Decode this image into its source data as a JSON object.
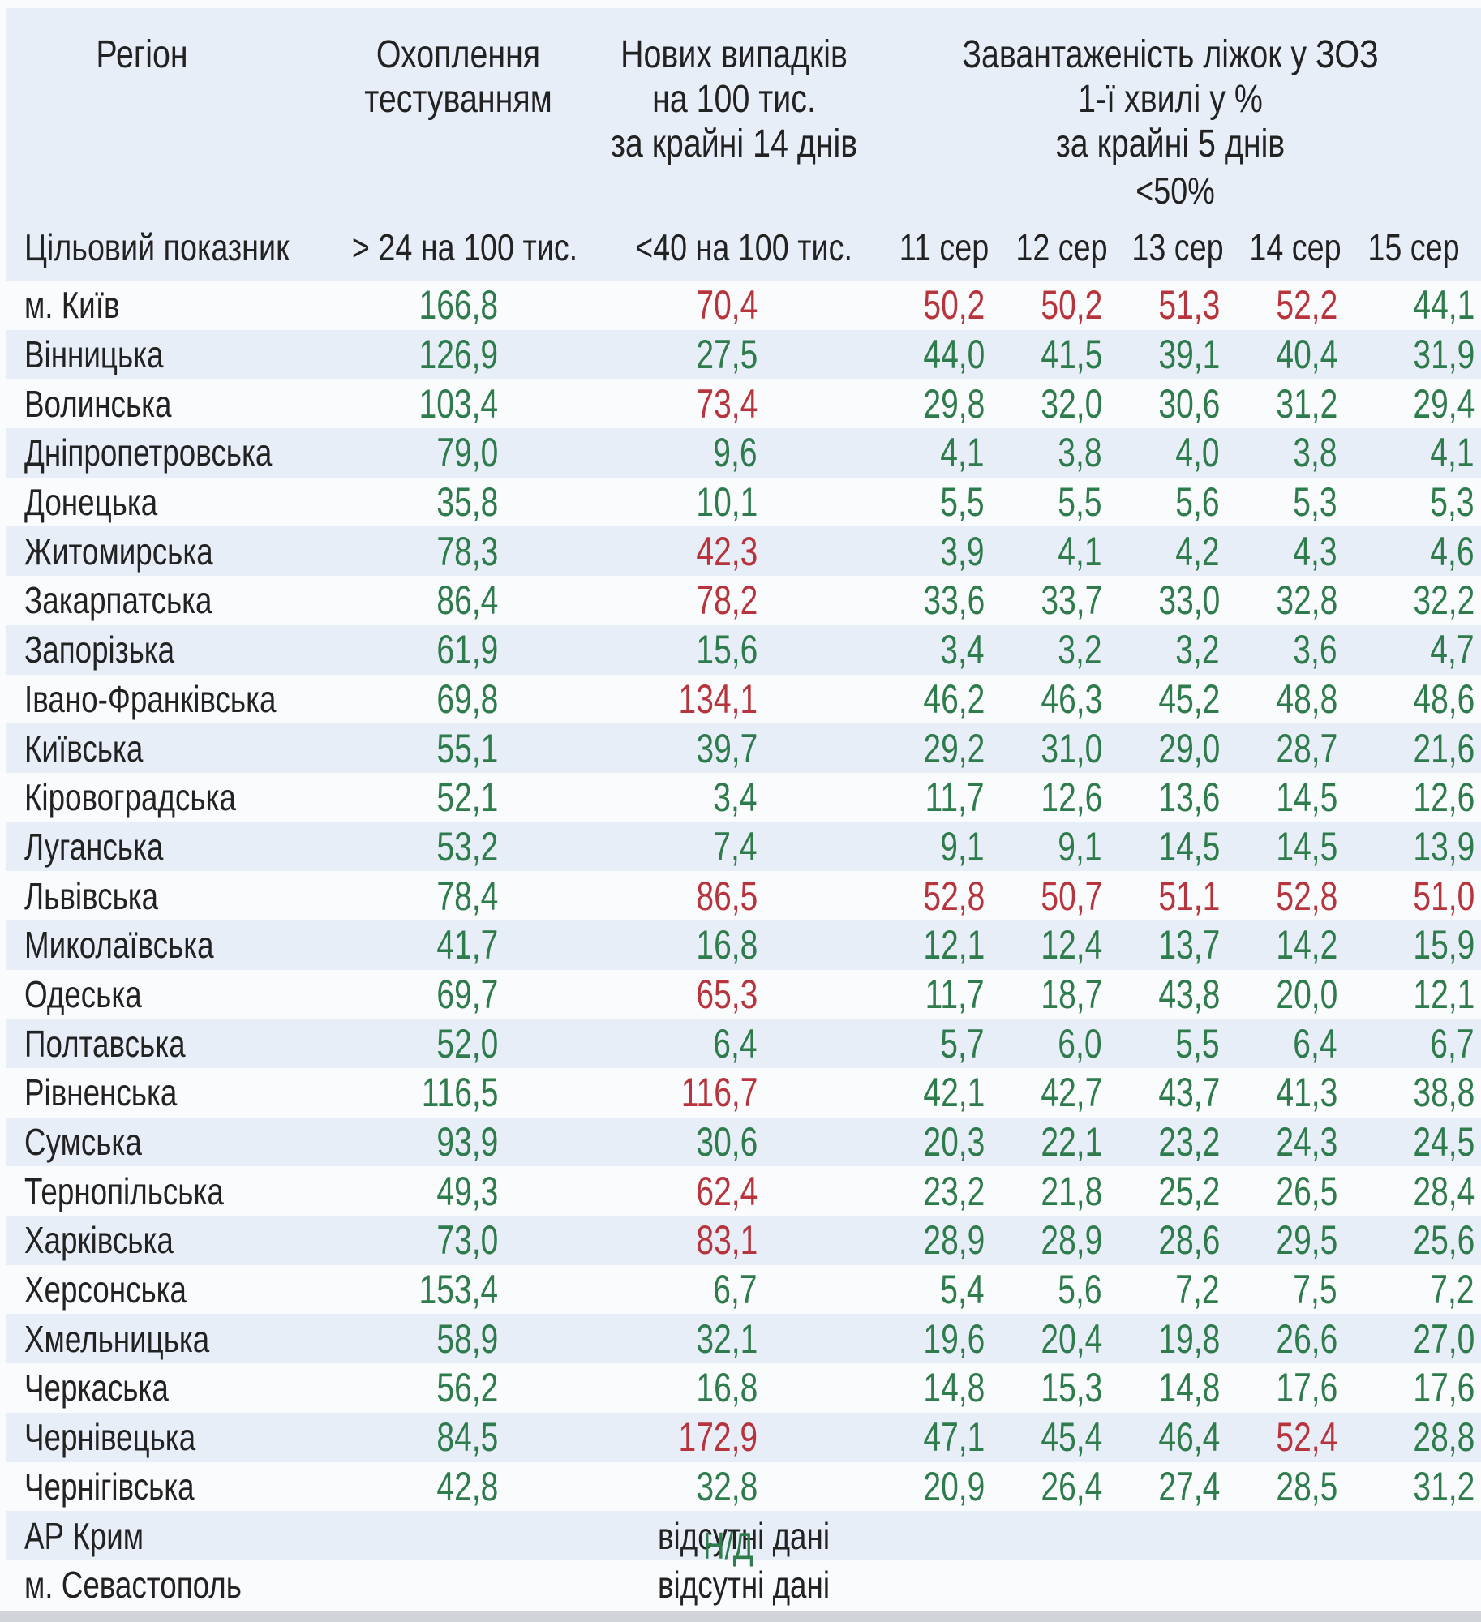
{
  "chart_data": {
    "type": "table",
    "header": {
      "region": "Регіон",
      "testing_lines": [
        "Охоплення",
        "тестуванням"
      ],
      "cases_lines": [
        "Нових випадків",
        "на 100 тис.",
        "за крайні 14 днів"
      ],
      "beds_lines": [
        "Завантаженість ліжок у ЗОЗ",
        "1-ї хвилі у %",
        "за крайні 5 днів"
      ],
      "beds_threshold": "<50%"
    },
    "target_row": {
      "label": "Цільовий показник",
      "testing_target": "> 24 на 100 тис.",
      "cases_target": "<40 на 100 тис.",
      "dates": [
        "11 сер",
        "12 сер",
        "13 сер",
        "14 сер",
        "15 сер"
      ]
    },
    "colors": {
      "good": "#2e7b4c",
      "bad": "#b7343c",
      "stripe": "#e8eef8",
      "text": "#222222",
      "page": "#fafbfd",
      "bottom_strip": "#d1d4d8"
    },
    "rows": [
      {
        "region": "м. Київ",
        "testing": {
          "v": "166,8",
          "ok": true
        },
        "cases": {
          "v": "70,4",
          "ok": false
        },
        "beds": [
          {
            "v": "50,2",
            "ok": false
          },
          {
            "v": "50,2",
            "ok": false
          },
          {
            "v": "51,3",
            "ok": false
          },
          {
            "v": "52,2",
            "ok": false
          },
          {
            "v": "44,1",
            "ok": true
          }
        ]
      },
      {
        "region": "Вінницька",
        "testing": {
          "v": "126,9",
          "ok": true
        },
        "cases": {
          "v": "27,5",
          "ok": true
        },
        "beds": [
          {
            "v": "44,0",
            "ok": true
          },
          {
            "v": "41,5",
            "ok": true
          },
          {
            "v": "39,1",
            "ok": true
          },
          {
            "v": "40,4",
            "ok": true
          },
          {
            "v": "31,9",
            "ok": true
          }
        ]
      },
      {
        "region": "Волинська",
        "testing": {
          "v": "103,4",
          "ok": true
        },
        "cases": {
          "v": "73,4",
          "ok": false
        },
        "beds": [
          {
            "v": "29,8",
            "ok": true
          },
          {
            "v": "32,0",
            "ok": true
          },
          {
            "v": "30,6",
            "ok": true
          },
          {
            "v": "31,2",
            "ok": true
          },
          {
            "v": "29,4",
            "ok": true
          }
        ]
      },
      {
        "region": "Дніпропетровська",
        "testing": {
          "v": "79,0",
          "ok": true
        },
        "cases": {
          "v": "9,6",
          "ok": true
        },
        "beds": [
          {
            "v": "4,1",
            "ok": true
          },
          {
            "v": "3,8",
            "ok": true
          },
          {
            "v": "4,0",
            "ok": true
          },
          {
            "v": "3,8",
            "ok": true
          },
          {
            "v": "4,1",
            "ok": true
          }
        ]
      },
      {
        "region": "Донецька",
        "testing": {
          "v": "35,8",
          "ok": true
        },
        "cases": {
          "v": "10,1",
          "ok": true
        },
        "beds": [
          {
            "v": "5,5",
            "ok": true
          },
          {
            "v": "5,5",
            "ok": true
          },
          {
            "v": "5,6",
            "ok": true
          },
          {
            "v": "5,3",
            "ok": true
          },
          {
            "v": "5,3",
            "ok": true
          }
        ]
      },
      {
        "region": "Житомирська",
        "testing": {
          "v": "78,3",
          "ok": true
        },
        "cases": {
          "v": "42,3",
          "ok": false
        },
        "beds": [
          {
            "v": "3,9",
            "ok": true
          },
          {
            "v": "4,1",
            "ok": true
          },
          {
            "v": "4,2",
            "ok": true
          },
          {
            "v": "4,3",
            "ok": true
          },
          {
            "v": "4,6",
            "ok": true
          }
        ]
      },
      {
        "region": "Закарпатська",
        "testing": {
          "v": "86,4",
          "ok": true
        },
        "cases": {
          "v": "78,2",
          "ok": false
        },
        "beds": [
          {
            "v": "33,6",
            "ok": true
          },
          {
            "v": "33,7",
            "ok": true
          },
          {
            "v": "33,0",
            "ok": true
          },
          {
            "v": "32,8",
            "ok": true
          },
          {
            "v": "32,2",
            "ok": true
          }
        ]
      },
      {
        "region": "Запорізька",
        "testing": {
          "v": "61,9",
          "ok": true
        },
        "cases": {
          "v": "15,6",
          "ok": true
        },
        "beds": [
          {
            "v": "3,4",
            "ok": true
          },
          {
            "v": "3,2",
            "ok": true
          },
          {
            "v": "3,2",
            "ok": true
          },
          {
            "v": "3,6",
            "ok": true
          },
          {
            "v": "4,7",
            "ok": true
          }
        ]
      },
      {
        "region": "Івано-Франківська",
        "testing": {
          "v": "69,8",
          "ok": true
        },
        "cases": {
          "v": "134,1",
          "ok": false
        },
        "beds": [
          {
            "v": "46,2",
            "ok": true
          },
          {
            "v": "46,3",
            "ok": true
          },
          {
            "v": "45,2",
            "ok": true
          },
          {
            "v": "48,8",
            "ok": true
          },
          {
            "v": "48,6",
            "ok": true
          }
        ]
      },
      {
        "region": "Київська",
        "testing": {
          "v": "55,1",
          "ok": true
        },
        "cases": {
          "v": "39,7",
          "ok": true
        },
        "beds": [
          {
            "v": "29,2",
            "ok": true
          },
          {
            "v": "31,0",
            "ok": true
          },
          {
            "v": "29,0",
            "ok": true
          },
          {
            "v": "28,7",
            "ok": true
          },
          {
            "v": "21,6",
            "ok": true
          }
        ]
      },
      {
        "region": "Кіровоградська",
        "testing": {
          "v": "52,1",
          "ok": true
        },
        "cases": {
          "v": "3,4",
          "ok": true
        },
        "beds": [
          {
            "v": "11,7",
            "ok": true
          },
          {
            "v": "12,6",
            "ok": true
          },
          {
            "v": "13,6",
            "ok": true
          },
          {
            "v": "14,5",
            "ok": true
          },
          {
            "v": "12,6",
            "ok": true
          }
        ]
      },
      {
        "region": "Луганська",
        "testing": {
          "v": "53,2",
          "ok": true
        },
        "cases": {
          "v": "7,4",
          "ok": true
        },
        "beds": [
          {
            "v": "9,1",
            "ok": true
          },
          {
            "v": "9,1",
            "ok": true
          },
          {
            "v": "14,5",
            "ok": true
          },
          {
            "v": "14,5",
            "ok": true
          },
          {
            "v": "13,9",
            "ok": true
          }
        ]
      },
      {
        "region": "Львівська",
        "testing": {
          "v": "78,4",
          "ok": true
        },
        "cases": {
          "v": "86,5",
          "ok": false
        },
        "beds": [
          {
            "v": "52,8",
            "ok": false
          },
          {
            "v": "50,7",
            "ok": false
          },
          {
            "v": "51,1",
            "ok": false
          },
          {
            "v": "52,8",
            "ok": false
          },
          {
            "v": "51,0",
            "ok": false
          }
        ]
      },
      {
        "region": "Миколаївська",
        "testing": {
          "v": "41,7",
          "ok": true
        },
        "cases": {
          "v": "16,8",
          "ok": true
        },
        "beds": [
          {
            "v": "12,1",
            "ok": true
          },
          {
            "v": "12,4",
            "ok": true
          },
          {
            "v": "13,7",
            "ok": true
          },
          {
            "v": "14,2",
            "ok": true
          },
          {
            "v": "15,9",
            "ok": true
          }
        ]
      },
      {
        "region": "Одеська",
        "testing": {
          "v": "69,7",
          "ok": true
        },
        "cases": {
          "v": "65,3",
          "ok": false
        },
        "beds": [
          {
            "v": "11,7",
            "ok": true
          },
          {
            "v": "18,7",
            "ok": true
          },
          {
            "v": "43,8",
            "ok": true
          },
          {
            "v": "20,0",
            "ok": true
          },
          {
            "v": "12,1",
            "ok": true
          }
        ]
      },
      {
        "region": "Полтавська",
        "testing": {
          "v": "52,0",
          "ok": true
        },
        "cases": {
          "v": "6,4",
          "ok": true
        },
        "beds": [
          {
            "v": "5,7",
            "ok": true
          },
          {
            "v": "6,0",
            "ok": true
          },
          {
            "v": "5,5",
            "ok": true
          },
          {
            "v": "6,4",
            "ok": true
          },
          {
            "v": "6,7",
            "ok": true
          }
        ]
      },
      {
        "region": "Рівненська",
        "testing": {
          "v": "116,5",
          "ok": true
        },
        "cases": {
          "v": "116,7",
          "ok": false
        },
        "beds": [
          {
            "v": "42,1",
            "ok": true
          },
          {
            "v": "42,7",
            "ok": true
          },
          {
            "v": "43,7",
            "ok": true
          },
          {
            "v": "41,3",
            "ok": true
          },
          {
            "v": "38,8",
            "ok": true
          }
        ]
      },
      {
        "region": "Сумська",
        "testing": {
          "v": "93,9",
          "ok": true
        },
        "cases": {
          "v": "30,6",
          "ok": true
        },
        "beds": [
          {
            "v": "20,3",
            "ok": true
          },
          {
            "v": "22,1",
            "ok": true
          },
          {
            "v": "23,2",
            "ok": true
          },
          {
            "v": "24,3",
            "ok": true
          },
          {
            "v": "24,5",
            "ok": true
          }
        ]
      },
      {
        "region": "Тернопільська",
        "testing": {
          "v": "49,3",
          "ok": true
        },
        "cases": {
          "v": "62,4",
          "ok": false
        },
        "beds": [
          {
            "v": "23,2",
            "ok": true
          },
          {
            "v": "21,8",
            "ok": true
          },
          {
            "v": "25,2",
            "ok": true
          },
          {
            "v": "26,5",
            "ok": true
          },
          {
            "v": "28,4",
            "ok": true
          }
        ]
      },
      {
        "region": "Харківська",
        "testing": {
          "v": "73,0",
          "ok": true
        },
        "cases": {
          "v": "83,1",
          "ok": false
        },
        "beds": [
          {
            "v": "28,9",
            "ok": true
          },
          {
            "v": "28,9",
            "ok": true
          },
          {
            "v": "28,6",
            "ok": true
          },
          {
            "v": "29,5",
            "ok": true
          },
          {
            "v": "25,6",
            "ok": true
          }
        ]
      },
      {
        "region": "Херсонська",
        "testing": {
          "v": "153,4",
          "ok": true
        },
        "cases": {
          "v": "6,7",
          "ok": true
        },
        "beds": [
          {
            "v": "5,4",
            "ok": true
          },
          {
            "v": "5,6",
            "ok": true
          },
          {
            "v": "7,2",
            "ok": true
          },
          {
            "v": "7,5",
            "ok": true
          },
          {
            "v": "7,2",
            "ok": true
          }
        ]
      },
      {
        "region": "Хмельницька",
        "testing": {
          "v": "58,9",
          "ok": true
        },
        "cases": {
          "v": "32,1",
          "ok": true
        },
        "beds": [
          {
            "v": "19,6",
            "ok": true
          },
          {
            "v": "20,4",
            "ok": true
          },
          {
            "v": "19,8",
            "ok": true
          },
          {
            "v": "26,6",
            "ok": true
          },
          {
            "v": "27,0",
            "ok": true
          }
        ]
      },
      {
        "region": "Черкаська",
        "testing": {
          "v": "56,2",
          "ok": true
        },
        "cases": {
          "v": "16,8",
          "ok": true
        },
        "beds": [
          {
            "v": "14,8",
            "ok": true
          },
          {
            "v": "15,3",
            "ok": true
          },
          {
            "v": "14,8",
            "ok": true
          },
          {
            "v": "17,6",
            "ok": true
          },
          {
            "v": "17,6",
            "ok": true
          }
        ]
      },
      {
        "region": "Чернівецька",
        "testing": {
          "v": "84,5",
          "ok": true
        },
        "cases": {
          "v": "172,9",
          "ok": false
        },
        "beds": [
          {
            "v": "47,1",
            "ok": true
          },
          {
            "v": "45,4",
            "ok": true
          },
          {
            "v": "46,4",
            "ok": true
          },
          {
            "v": "52,4",
            "ok": false
          },
          {
            "v": "28,8",
            "ok": true
          }
        ]
      },
      {
        "region": "Чернігівська",
        "testing": {
          "v": "42,8",
          "ok": true
        },
        "cases": {
          "v": "32,8",
          "ok": true
        },
        "beds": [
          {
            "v": "20,9",
            "ok": true
          },
          {
            "v": "26,4",
            "ok": true
          },
          {
            "v": "27,4",
            "ok": true
          },
          {
            "v": "28,5",
            "ok": true
          },
          {
            "v": "31,2",
            "ok": true
          }
        ]
      },
      {
        "region": "АР Крим",
        "no_data": "відсутні дані",
        "overlay": "Н/Д"
      },
      {
        "region": "м. Севастополь",
        "no_data": "відсутні дані"
      }
    ]
  }
}
